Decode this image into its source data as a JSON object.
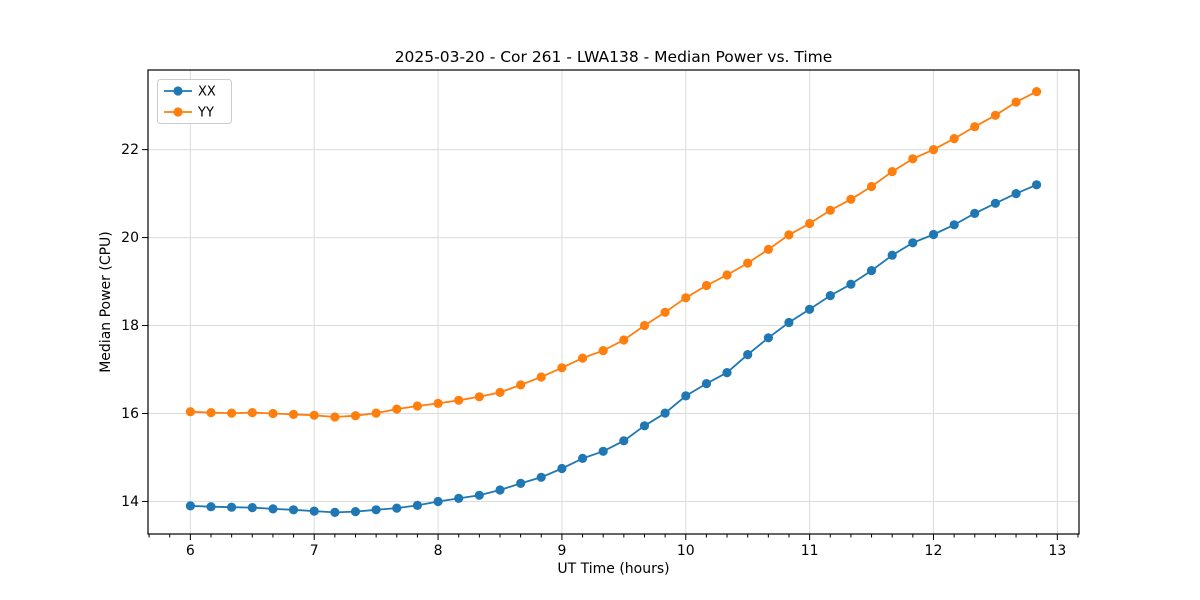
{
  "figure": {
    "title": "2025-03-20 - Cor 261 - LWA138 - Median Power vs. Time",
    "xlabel": "UT Time (hours)",
    "ylabel": "Median Power (CPU)"
  },
  "chart_data": {
    "type": "line",
    "title": "2025-03-20 - Cor 261 - LWA138 - Median Power vs. Time",
    "xlabel": "UT Time (hours)",
    "ylabel": "Median Power (CPU)",
    "xlim": [
      5.658,
      13.175
    ],
    "ylim": [
      13.26,
      23.81
    ],
    "x_ticks": [
      6,
      7,
      8,
      9,
      10,
      11,
      12,
      13
    ],
    "y_ticks": [
      14,
      16,
      18,
      20,
      22
    ],
    "x_minor_interval": 0.16667,
    "grid": true,
    "legend": {
      "position": "upper-left",
      "entries": [
        "XX",
        "YY"
      ]
    },
    "colors": {
      "grid": "#dcdcdc",
      "spine": "#000000",
      "tick": "#000000",
      "legend_border": "#cccccc",
      "legend_fill": "#ffffff"
    },
    "x": [
      6.0,
      6.167,
      6.333,
      6.5,
      6.667,
      6.833,
      7.0,
      7.167,
      7.333,
      7.5,
      7.667,
      7.833,
      8.0,
      8.167,
      8.333,
      8.5,
      8.667,
      8.833,
      9.0,
      9.167,
      9.333,
      9.5,
      9.667,
      9.833,
      10.0,
      10.167,
      10.333,
      10.5,
      10.667,
      10.833,
      11.0,
      11.167,
      11.333,
      11.5,
      11.667,
      11.833,
      12.0,
      12.167,
      12.333,
      12.5,
      12.667,
      12.833
    ],
    "series": [
      {
        "name": "XX",
        "color": "#1f77b4",
        "values": [
          13.9,
          13.88,
          13.87,
          13.86,
          13.83,
          13.81,
          13.78,
          13.75,
          13.77,
          13.81,
          13.85,
          13.91,
          14.0,
          14.07,
          14.14,
          14.26,
          14.41,
          14.55,
          14.75,
          14.98,
          15.14,
          15.38,
          15.72,
          16.01,
          16.4,
          16.68,
          16.93,
          17.34,
          17.72,
          18.07,
          18.37,
          18.68,
          18.94,
          19.25,
          19.6,
          19.88,
          20.07,
          20.29,
          20.55,
          20.78,
          21.0,
          21.2
        ]
      },
      {
        "name": "YY",
        "color": "#ff7f0e",
        "values": [
          16.04,
          16.02,
          16.01,
          16.02,
          16.0,
          15.98,
          15.96,
          15.92,
          15.95,
          16.01,
          16.1,
          16.17,
          16.23,
          16.3,
          16.38,
          16.48,
          16.65,
          16.83,
          17.04,
          17.26,
          17.43,
          17.67,
          18.0,
          18.3,
          18.63,
          18.91,
          19.15,
          19.42,
          19.73,
          20.06,
          20.32,
          20.62,
          20.87,
          21.16,
          21.5,
          21.79,
          22.0,
          22.25,
          22.52,
          22.78,
          23.08,
          23.32
        ]
      }
    ]
  }
}
